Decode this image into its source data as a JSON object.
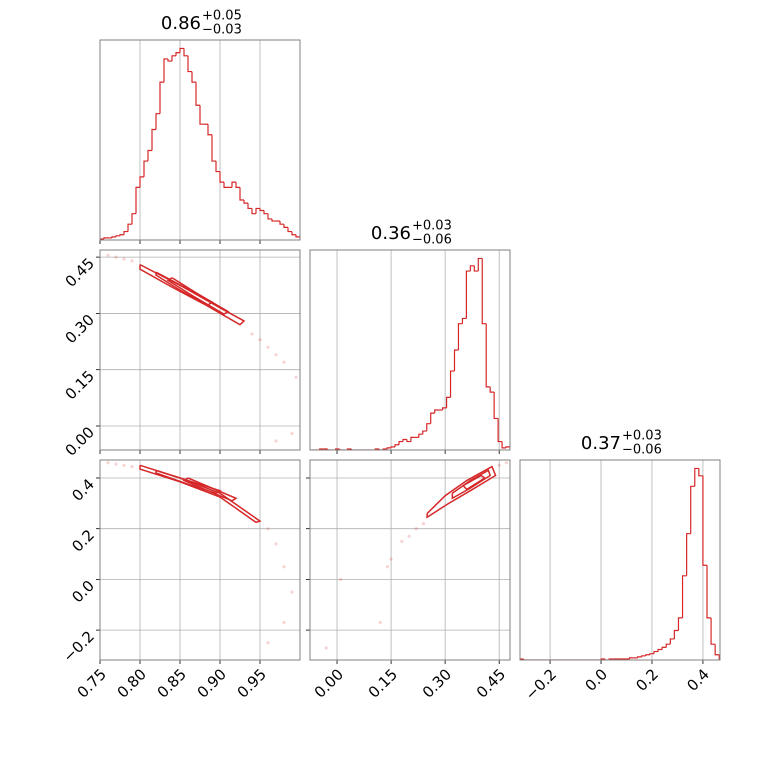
{
  "chart_data": [
    {
      "type": "histogram",
      "title": "0.86",
      "title_sup": "+0.05",
      "title_sub": "−0.03",
      "color": "#d62728",
      "bins": [
        0.75,
        0.755,
        0.76,
        0.765,
        0.77,
        0.775,
        0.78,
        0.785,
        0.79,
        0.795,
        0.8,
        0.805,
        0.81,
        0.815,
        0.82,
        0.825,
        0.83,
        0.835,
        0.84,
        0.845,
        0.85,
        0.855,
        0.86,
        0.865,
        0.87,
        0.875,
        0.88,
        0.885,
        0.89,
        0.895,
        0.9,
        0.905,
        0.91,
        0.915,
        0.92,
        0.925,
        0.93,
        0.935,
        0.94,
        0.945,
        0.95,
        0.955,
        0.96,
        0.965,
        0.97,
        0.975,
        0.98,
        0.985,
        0.99,
        0.995,
        1.0
      ],
      "values": [
        1,
        2,
        2,
        3,
        4,
        5,
        8,
        15,
        25,
        50,
        60,
        75,
        85,
        105,
        120,
        150,
        172,
        170,
        175,
        178,
        182,
        175,
        160,
        150,
        128,
        110,
        110,
        100,
        75,
        65,
        55,
        50,
        50,
        55,
        50,
        38,
        35,
        30,
        25,
        30,
        28,
        25,
        20,
        18,
        18,
        15,
        12,
        8,
        5,
        3
      ],
      "xlim": [
        0.75,
        1.0
      ],
      "ylim": [
        0,
        190
      ],
      "xticks": [
        0.75,
        {
          "value": 0.8,
          "label": "0.80"
        },
        0.85,
        {
          "value": 0.9,
          "label": "0.90"
        },
        0.95
      ],
      "grid": true
    },
    {
      "type": "histogram",
      "title": "0.36",
      "title_sup": "+0.03",
      "title_sub": "−0.06",
      "color": "#d62728",
      "bins": [
        -0.07,
        -0.059,
        -0.048,
        -0.037,
        -0.026,
        -0.015,
        -0.004,
        0.007,
        0.018,
        0.029,
        0.04,
        0.051,
        0.062,
        0.073,
        0.084,
        0.095,
        0.106,
        0.117,
        0.128,
        0.139,
        0.15,
        0.161,
        0.172,
        0.183,
        0.194,
        0.205,
        0.216,
        0.227,
        0.238,
        0.249,
        0.26,
        0.271,
        0.282,
        0.293,
        0.304,
        0.315,
        0.326,
        0.337,
        0.348,
        0.359,
        0.37,
        0.381,
        0.392,
        0.403,
        0.414,
        0.425,
        0.436,
        0.447,
        0.458,
        0.469,
        0.48
      ],
      "values": [
        0,
        0,
        1,
        1,
        0,
        0,
        1,
        0,
        0,
        1,
        0,
        0,
        0,
        0,
        0,
        0,
        1,
        0,
        1,
        2,
        3,
        5,
        8,
        10,
        8,
        12,
        12,
        15,
        18,
        25,
        35,
        38,
        38,
        40,
        50,
        75,
        95,
        120,
        125,
        170,
        175,
        170,
        182,
        120,
        60,
        55,
        30,
        8,
        2,
        3
      ],
      "xlim": [
        -0.075,
        0.48
      ],
      "ylim": [
        0,
        190
      ],
      "xticks": [
        {
          "value": 0,
          "label": "0.00"
        },
        0.15,
        {
          "value": 0.3,
          "label": "0.30"
        },
        0.45
      ],
      "grid": true
    },
    {
      "type": "histogram",
      "title": "0.37",
      "title_sup": "+0.03",
      "title_sub": "−0.06",
      "color": "#d62728",
      "bins": [
        -0.32,
        -0.304,
        -0.288,
        -0.272,
        -0.256,
        -0.24,
        -0.224,
        -0.208,
        -0.192,
        -0.176,
        -0.16,
        -0.144,
        -0.128,
        -0.112,
        -0.096,
        -0.08,
        -0.064,
        -0.048,
        -0.032,
        -0.016,
        0,
        0.016,
        0.032,
        0.048,
        0.064,
        0.08,
        0.096,
        0.112,
        0.128,
        0.144,
        0.16,
        0.176,
        0.192,
        0.208,
        0.224,
        0.24,
        0.256,
        0.272,
        0.288,
        0.304,
        0.32,
        0.336,
        0.352,
        0.368,
        0.384,
        0.4,
        0.416,
        0.432,
        0.448,
        0.464,
        0.48
      ],
      "values": [
        1,
        0,
        0,
        0,
        0,
        0,
        0,
        0,
        0,
        0,
        0,
        0,
        0,
        0,
        0,
        0,
        0,
        0,
        0,
        0,
        1,
        0,
        1,
        1,
        1,
        1,
        1,
        2,
        2,
        3,
        4,
        5,
        6,
        8,
        10,
        12,
        15,
        20,
        28,
        40,
        80,
        120,
        165,
        182,
        175,
        90,
        40,
        15,
        5,
        1
      ],
      "xlim": [
        -0.318,
        0.467
      ],
      "ylim": [
        0,
        190
      ],
      "xticks": [
        {
          "value": -0.2,
          "label": "−0.2"
        },
        {
          "value": 0,
          "label": "0.0"
        },
        0.2,
        0.4
      ],
      "grid": true
    },
    {
      "type": "scatter",
      "color": "#d62728",
      "x": [
        0.76,
        0.77,
        0.78,
        0.79,
        0.94,
        0.95,
        0.96,
        0.97,
        0.98,
        0.995,
        0.99,
        0.97
      ],
      "y": [
        0.455,
        0.45,
        0.445,
        0.44,
        0.245,
        0.23,
        0.21,
        0.19,
        0.17,
        0.13,
        -0.02,
        -0.04
      ],
      "contours": [
        {
          "x": [
            0.8,
            0.85,
            0.9,
            0.93,
            0.925,
            0.88,
            0.84,
            0.8,
            0.8
          ],
          "y": [
            0.43,
            0.375,
            0.315,
            0.28,
            0.27,
            0.325,
            0.37,
            0.418,
            0.43
          ]
        },
        {
          "x": [
            0.82,
            0.86,
            0.89,
            0.885,
            0.85,
            0.82,
            0.82
          ],
          "y": [
            0.41,
            0.365,
            0.33,
            0.322,
            0.362,
            0.402,
            0.41
          ]
        },
        {
          "x": [
            0.84,
            0.87,
            0.91,
            0.905,
            0.865,
            0.835,
            0.84
          ],
          "y": [
            0.395,
            0.355,
            0.305,
            0.298,
            0.348,
            0.388,
            0.395
          ]
        }
      ],
      "xlim": [
        0.75,
        1.0
      ],
      "ylim": [
        -0.064,
        0.469
      ],
      "xticks": [
        0.75,
        {
          "value": 0.8,
          "label": "0.80"
        },
        0.85,
        {
          "value": 0.9,
          "label": "0.90"
        },
        0.95
      ],
      "yticks": [
        {
          "value": 0,
          "label": "0.00"
        },
        0.15,
        {
          "value": 0.3,
          "label": "0.30"
        },
        0.45
      ],
      "grid": true
    },
    {
      "type": "scatter",
      "color": "#d62728",
      "x": [
        0.76,
        0.77,
        0.78,
        0.79,
        0.96,
        0.97,
        0.98,
        0.99,
        0.96,
        0.98
      ],
      "y": [
        0.46,
        0.455,
        0.45,
        0.445,
        0.2,
        0.14,
        0.05,
        -0.05,
        -0.25,
        -0.17
      ],
      "contours": [
        {
          "x": [
            0.8,
            0.85,
            0.9,
            0.95,
            0.945,
            0.9,
            0.85,
            0.8,
            0.8
          ],
          "y": [
            0.45,
            0.4,
            0.34,
            0.23,
            0.225,
            0.325,
            0.385,
            0.435,
            0.45
          ]
        },
        {
          "x": [
            0.82,
            0.87,
            0.9,
            0.895,
            0.865,
            0.82,
            0.82
          ],
          "y": [
            0.43,
            0.38,
            0.35,
            0.34,
            0.37,
            0.42,
            0.43
          ]
        },
        {
          "x": [
            0.86,
            0.92,
            0.915,
            0.855,
            0.86
          ],
          "y": [
            0.4,
            0.32,
            0.31,
            0.39,
            0.4
          ]
        }
      ],
      "xlim": [
        0.75,
        1.0
      ],
      "ylim": [
        -0.318,
        0.471
      ],
      "xticks": [
        0.75,
        {
          "value": 0.8,
          "label": "0.80"
        },
        0.85,
        {
          "value": 0.9,
          "label": "0.90"
        },
        0.95
      ],
      "yticks": [
        {
          "value": -0.2,
          "label": "−0.2"
        },
        {
          "value": 0,
          "label": "0.0"
        },
        0.2,
        0.4
      ],
      "grid": true
    },
    {
      "type": "scatter",
      "color": "#d62728",
      "x": [
        0.15,
        0.14,
        0.18,
        0.2,
        0.12,
        -0.03,
        0.01,
        0.45,
        0.47,
        0.22,
        0.24
      ],
      "y": [
        0.08,
        0.05,
        0.15,
        0.17,
        -0.17,
        -0.27,
        0.0,
        0.45,
        0.46,
        0.2,
        0.22
      ],
      "contours": [
        {
          "x": [
            0.25,
            0.3,
            0.36,
            0.43,
            0.44,
            0.37,
            0.31,
            0.25,
            0.25
          ],
          "y": [
            0.26,
            0.33,
            0.39,
            0.445,
            0.41,
            0.35,
            0.3,
            0.245,
            0.26
          ]
        },
        {
          "x": [
            0.32,
            0.37,
            0.42,
            0.425,
            0.37,
            0.32,
            0.32
          ],
          "y": [
            0.34,
            0.39,
            0.43,
            0.41,
            0.36,
            0.32,
            0.34
          ]
        },
        {
          "x": [
            0.35,
            0.4,
            0.41,
            0.36,
            0.35
          ],
          "y": [
            0.37,
            0.41,
            0.4,
            0.355,
            0.37
          ]
        }
      ],
      "xlim": [
        -0.075,
        0.48
      ],
      "ylim": [
        -0.318,
        0.471
      ],
      "xticks": [
        {
          "value": 0,
          "label": "0.00"
        },
        0.15,
        {
          "value": 0.3,
          "label": "0.30"
        },
        0.45
      ],
      "yticks": [
        {
          "value": -0.2,
          "label": "−0.2"
        },
        {
          "value": 0,
          "label": "0.0"
        },
        0.2,
        0.4
      ],
      "grid": true
    }
  ]
}
